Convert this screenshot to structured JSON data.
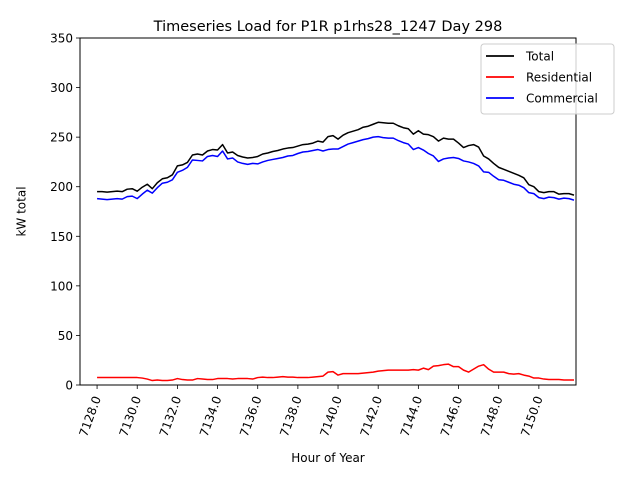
{
  "chart_data": {
    "type": "line",
    "title": "Timeseries Load for P1R p1rhs28_1247  Day 298",
    "xlabel": "Hour of Year",
    "ylabel": "kW total",
    "xlim": [
      7127.15,
      7151.85
    ],
    "ylim": [
      0,
      350
    ],
    "xticks": [
      7128,
      7130,
      7132,
      7134,
      7136,
      7138,
      7140,
      7142,
      7144,
      7146,
      7148,
      7150
    ],
    "xtick_labels": [
      "7128.0",
      "7130.0",
      "7132.0",
      "7134.0",
      "7136.0",
      "7138.0",
      "7140.0",
      "7142.0",
      "7144.0",
      "7146.0",
      "7148.0",
      "7150.0"
    ],
    "yticks": [
      0,
      50,
      100,
      150,
      200,
      250,
      300,
      350
    ],
    "ytick_labels": [
      "0",
      "50",
      "100",
      "150",
      "200",
      "250",
      "300",
      "350"
    ],
    "grid": false,
    "legend_position": "top-right",
    "x": [
      7128,
      7128.25,
      7128.5,
      7128.75,
      7129,
      7129.25,
      7129.5,
      7129.75,
      7130,
      7130.25,
      7130.5,
      7130.75,
      7131,
      7131.25,
      7131.5,
      7131.75,
      7132,
      7132.25,
      7132.5,
      7132.75,
      7133,
      7133.25,
      7133.5,
      7133.75,
      7134,
      7134.25,
      7134.5,
      7134.75,
      7135,
      7135.25,
      7135.5,
      7135.75,
      7136,
      7136.25,
      7136.5,
      7136.75,
      7137,
      7137.25,
      7137.5,
      7137.75,
      7138,
      7138.25,
      7138.5,
      7138.75,
      7139,
      7139.25,
      7139.5,
      7139.75,
      7140,
      7140.25,
      7140.5,
      7140.75,
      7141,
      7141.25,
      7141.5,
      7141.75,
      7142,
      7142.25,
      7142.5,
      7142.75,
      7143,
      7143.25,
      7143.5,
      7143.75,
      7144,
      7144.25,
      7144.5,
      7144.75,
      7145,
      7145.25,
      7145.5,
      7145.75,
      7146,
      7146.25,
      7146.5,
      7146.75,
      7147,
      7147.25,
      7147.5,
      7147.75,
      7148,
      7148.25,
      7148.5,
      7148.75,
      7149,
      7149.25,
      7149.5,
      7149.75,
      7150,
      7150.25,
      7150.5,
      7150.75,
      7151,
      7151.25,
      7151.5,
      7151.75
    ],
    "series": [
      {
        "name": "Total",
        "color": "#000000",
        "values": [
          195,
          195,
          194.5,
          195,
          195.5,
          195,
          197.5,
          198,
          195.5,
          199.5,
          202.5,
          198,
          204,
          208,
          209,
          212,
          221,
          222,
          224.5,
          232,
          233,
          232,
          236,
          237.5,
          237,
          242.5,
          234,
          235,
          231.5,
          230,
          229,
          229.5,
          230.5,
          233,
          234,
          235.5,
          236.5,
          238,
          239,
          239.5,
          241,
          242.5,
          243,
          244,
          246,
          245,
          250.5,
          251.5,
          248,
          252,
          254.5,
          256,
          257.5,
          260,
          261,
          263,
          265,
          264.5,
          264,
          264,
          261.5,
          259.5,
          258.5,
          253,
          256.5,
          253,
          252.5,
          250.5,
          246,
          249,
          248,
          248,
          244,
          239.5,
          241.5,
          242.5,
          240,
          231,
          228,
          223.5,
          219.5,
          217.5,
          215.5,
          213.5,
          211.5,
          209,
          202,
          200,
          195,
          194,
          195,
          195,
          192.5,
          193,
          193,
          191.5
        ]
      },
      {
        "name": "Residential",
        "color": "#ff0000",
        "values": [
          7.5,
          7.5,
          7.5,
          7.5,
          7.5,
          7.5,
          7.5,
          7.5,
          7.5,
          7,
          6,
          4.5,
          5,
          4.5,
          4.5,
          5,
          6.5,
          5.5,
          5,
          5,
          6.5,
          6,
          5.5,
          5.5,
          6.5,
          6.5,
          6.5,
          6,
          6.5,
          6.5,
          6.5,
          6,
          7.5,
          8,
          7.5,
          7.5,
          8,
          8.5,
          8,
          8,
          7.5,
          7.5,
          7.5,
          8,
          8.5,
          9,
          13,
          13.5,
          10,
          11.5,
          11.5,
          11.5,
          11.5,
          12,
          12.5,
          13,
          14,
          14.5,
          15,
          15,
          15,
          15,
          15,
          15.5,
          15,
          17,
          15.5,
          19,
          19.5,
          20.5,
          21,
          18.5,
          18.5,
          15,
          13,
          16,
          19,
          20.5,
          16,
          13,
          13,
          13,
          11.5,
          11,
          11.5,
          10,
          9,
          7,
          7,
          6,
          5.5,
          5.5,
          5.5,
          5,
          5,
          5
        ]
      },
      {
        "name": "Commercial",
        "color": "#0000ff",
        "values": [
          188,
          187.5,
          187,
          187.5,
          188,
          187.5,
          190,
          190.5,
          188,
          192.5,
          196.5,
          193.5,
          199,
          203.5,
          204.5,
          207,
          214.5,
          216.5,
          219.5,
          227,
          226.5,
          226,
          230.5,
          231.5,
          230.5,
          236,
          228,
          229,
          225,
          223.5,
          222.5,
          223.5,
          223,
          225,
          226.5,
          227.5,
          228.5,
          229.5,
          231,
          231.5,
          233.5,
          235,
          235.5,
          236.5,
          237.5,
          236,
          237.5,
          238,
          238,
          240.5,
          243,
          244.5,
          246,
          247.5,
          248.5,
          250,
          250.5,
          249.5,
          249,
          249,
          246.5,
          244.5,
          243,
          237.5,
          239.5,
          237,
          233.5,
          231,
          225.5,
          228,
          229,
          229.5,
          228.5,
          226,
          225,
          223.5,
          221,
          215,
          214.5,
          210.5,
          207,
          206.5,
          204.5,
          202.5,
          201.5,
          199,
          194,
          193,
          189,
          188,
          189.5,
          189,
          187.5,
          188.5,
          188,
          186.5
        ]
      }
    ]
  }
}
